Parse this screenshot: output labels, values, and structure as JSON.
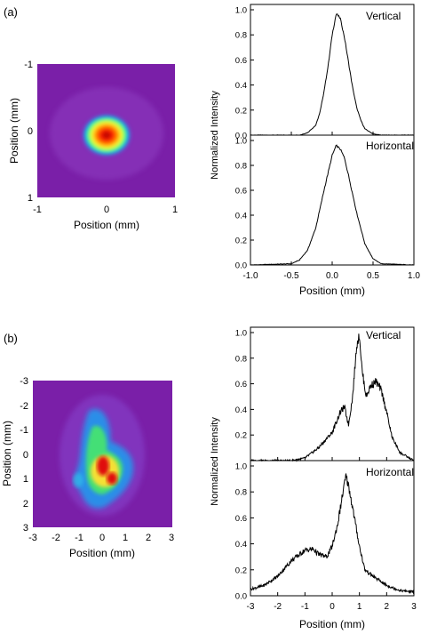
{
  "panels": [
    {
      "label": "(a)",
      "beam_map": {
        "type": "heatmap",
        "xlabel": "Position (mm)",
        "ylabel": "Position (mm)",
        "xlim": [
          -1,
          1
        ],
        "ylim": [
          -1,
          1
        ],
        "xticks": [
          "-1",
          "0",
          "1"
        ],
        "yticks": [
          "-1",
          "0",
          "1"
        ],
        "y_inverted": true,
        "background_color": "#7a1fa8",
        "spots": [
          {
            "x": 0.0,
            "y": 0.02,
            "rx": 0.34,
            "ry": 0.3,
            "level": 1.0
          }
        ]
      },
      "profiles": {
        "ylabel": "Normalized Intensity",
        "xlabel": "",
        "xlim": [
          -1.0,
          1.0
        ],
        "xticks": [
          "-1.0",
          "-0.5",
          "0.0",
          "0.5",
          "1.0"
        ],
        "ylim": [
          0,
          1.0
        ],
        "yticks": [
          "0.0",
          "0.2",
          "0.4",
          "0.6",
          "0.8",
          "1.0"
        ],
        "top_subplot_ytick_labels": [
          "0.0",
          "0.2",
          "0.4",
          "0.6",
          "0.8",
          "1.0"
        ],
        "bottom_subplot_ytick_labels": [
          "0.0",
          "0.2",
          "0.4",
          "0.6",
          "0.8",
          "1.0"
        ],
        "top_name": "Vertical",
        "bottom_name": "Horizontal"
      },
      "chart_data": [
        {
          "type": "line",
          "name": "Vertical",
          "x": [
            -1.0,
            -0.4,
            -0.3,
            -0.2,
            -0.15,
            -0.1,
            -0.05,
            0.0,
            0.05,
            0.1,
            0.15,
            0.2,
            0.25,
            0.3,
            0.35,
            0.4,
            0.5,
            0.6,
            1.0
          ],
          "y": [
            0.0,
            0.0,
            0.02,
            0.08,
            0.18,
            0.35,
            0.55,
            0.8,
            0.97,
            0.93,
            0.78,
            0.58,
            0.38,
            0.22,
            0.12,
            0.05,
            0.01,
            0.0,
            0.0
          ]
        },
        {
          "type": "line",
          "name": "Horizontal",
          "x": [
            -1.0,
            -0.5,
            -0.4,
            -0.3,
            -0.2,
            -0.1,
            0.0,
            0.05,
            0.1,
            0.15,
            0.2,
            0.3,
            0.4,
            0.5,
            0.6,
            1.0
          ],
          "y": [
            0.0,
            0.01,
            0.04,
            0.12,
            0.3,
            0.6,
            0.88,
            0.96,
            0.93,
            0.86,
            0.72,
            0.42,
            0.17,
            0.05,
            0.01,
            0.0
          ]
        }
      ]
    },
    {
      "label": "(b)",
      "beam_map": {
        "type": "heatmap",
        "xlabel": "Position (mm)",
        "ylabel": "Position (mm)",
        "xlim": [
          -3,
          3
        ],
        "ylim": [
          -3,
          3
        ],
        "xticks": [
          "-3",
          "-2",
          "-1",
          "0",
          "1",
          "2",
          "3"
        ],
        "yticks": [
          "-3",
          "-2",
          "-1",
          "0",
          "1",
          "2",
          "3"
        ],
        "y_inverted": true,
        "background_color": "#7a1fa8",
        "spots": [
          {
            "x": 0.0,
            "y": 0.3,
            "rx": 1.3,
            "ry": 2.2,
            "level": 0.45
          },
          {
            "x": 0.2,
            "y": 0.5,
            "rx": 0.8,
            "ry": 1.4,
            "level": 0.7
          },
          {
            "x": 0.3,
            "y": 0.6,
            "rx": 0.45,
            "ry": 0.8,
            "level": 0.9
          },
          {
            "x": 0.1,
            "y": 0.4,
            "rx": 0.18,
            "ry": 0.35,
            "level": 1.0
          },
          {
            "x": 0.7,
            "y": 0.9,
            "rx": 0.2,
            "ry": 0.3,
            "level": 1.0
          }
        ]
      },
      "profiles": {
        "ylabel": "Normalized Intensity",
        "xlabel": "Position (mm)",
        "xlim": [
          -3,
          3
        ],
        "xticks": [
          "-3",
          "-2",
          "-1",
          "0",
          "1",
          "2",
          "3"
        ],
        "ylim": [
          0,
          1.0
        ],
        "yticks": [
          "0.0",
          "0.2",
          "0.4",
          "0.6",
          "0.8",
          "1.0"
        ],
        "top_subplot_ytick_labels": [
          "0.2",
          "0.4",
          "0.6",
          "0.8",
          "1.0"
        ],
        "bottom_subplot_ytick_labels": [
          "0.0",
          "0.2",
          "0.4",
          "0.6",
          "0.8",
          "1.0"
        ],
        "top_name": "Vertical",
        "bottom_name": "Horizontal"
      },
      "chart_data": [
        {
          "type": "line",
          "name": "Vertical",
          "x": [
            -3.0,
            -1.5,
            -1.0,
            -0.5,
            0.0,
            0.3,
            0.45,
            0.6,
            0.75,
            0.9,
            1.0,
            1.1,
            1.25,
            1.4,
            1.6,
            1.8,
            2.0,
            2.2,
            2.5,
            3.0
          ],
          "y": [
            0.0,
            0.0,
            0.02,
            0.1,
            0.22,
            0.38,
            0.42,
            0.28,
            0.5,
            0.9,
            0.98,
            0.7,
            0.5,
            0.58,
            0.62,
            0.55,
            0.38,
            0.18,
            0.06,
            0.0
          ]
        },
        {
          "type": "line",
          "name": "Horizontal",
          "x": [
            -3.0,
            -2.5,
            -2.0,
            -1.5,
            -1.0,
            -0.7,
            -0.5,
            -0.2,
            0.0,
            0.2,
            0.4,
            0.5,
            0.6,
            0.8,
            1.0,
            1.2,
            1.5,
            2.0,
            2.5,
            3.0
          ],
          "y": [
            0.05,
            0.08,
            0.15,
            0.27,
            0.35,
            0.36,
            0.32,
            0.3,
            0.38,
            0.55,
            0.8,
            0.92,
            0.85,
            0.62,
            0.38,
            0.2,
            0.15,
            0.08,
            0.04,
            0.03
          ]
        }
      ]
    }
  ]
}
